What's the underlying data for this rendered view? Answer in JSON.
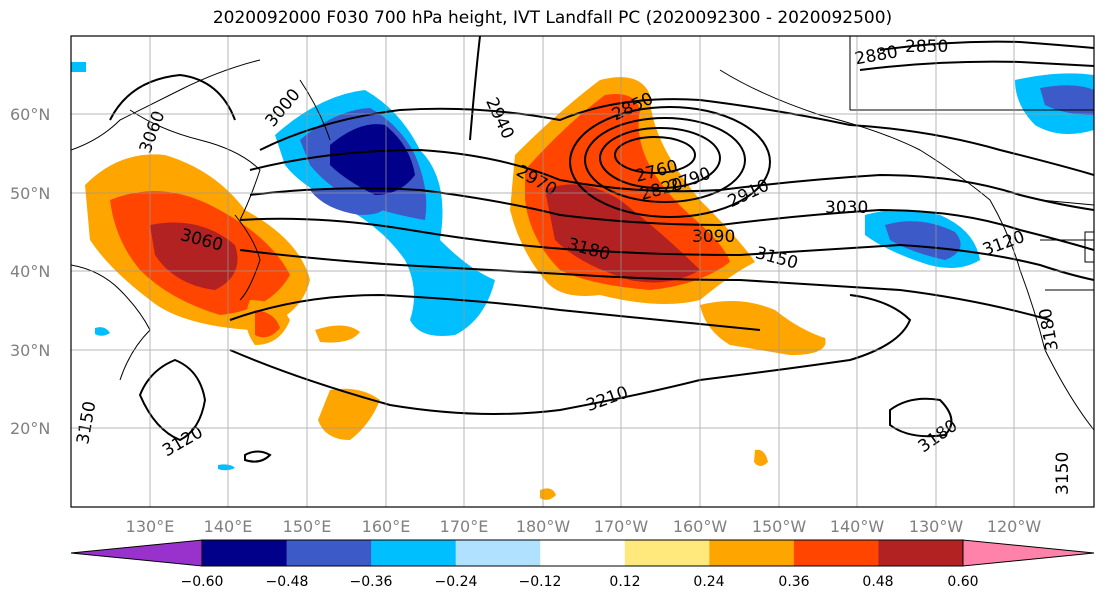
{
  "title": "2020092000 F030 700 hPa height, IVT Landfall PC (2020092300 - 2020092500)",
  "lat_labels": [
    "60°N",
    "50°N",
    "40°N",
    "30°N",
    "20°N"
  ],
  "lon_labels": [
    "130°E",
    "140°E",
    "150°E",
    "160°E",
    "170°E",
    "180°W",
    "170°W",
    "160°W",
    "150°W",
    "140°W",
    "130°W",
    "120°W"
  ],
  "contour_labels": [
    "3060",
    "3000",
    "2940",
    "2850",
    "2880",
    "2850",
    "2760",
    "2820",
    "2790",
    "2910",
    "2970",
    "3030",
    "3090",
    "3060",
    "3180",
    "3150",
    "3120",
    "3210",
    "3120",
    "3180",
    "3150",
    "3150",
    "3180"
  ],
  "colorbar": {
    "ticks": [
      "−0.60",
      "−0.48",
      "−0.36",
      "−0.24",
      "−0.12",
      "0.12",
      "0.24",
      "0.36",
      "0.48",
      "0.60"
    ],
    "colors": [
      "#9932cc",
      "#00008b",
      "#3c5ac8",
      "#00bfff",
      "#b0e2ff",
      "#ffffff",
      "#ffe87c",
      "#ffa500",
      "#ff4500",
      "#b22222",
      "#ff82ab"
    ]
  }
}
